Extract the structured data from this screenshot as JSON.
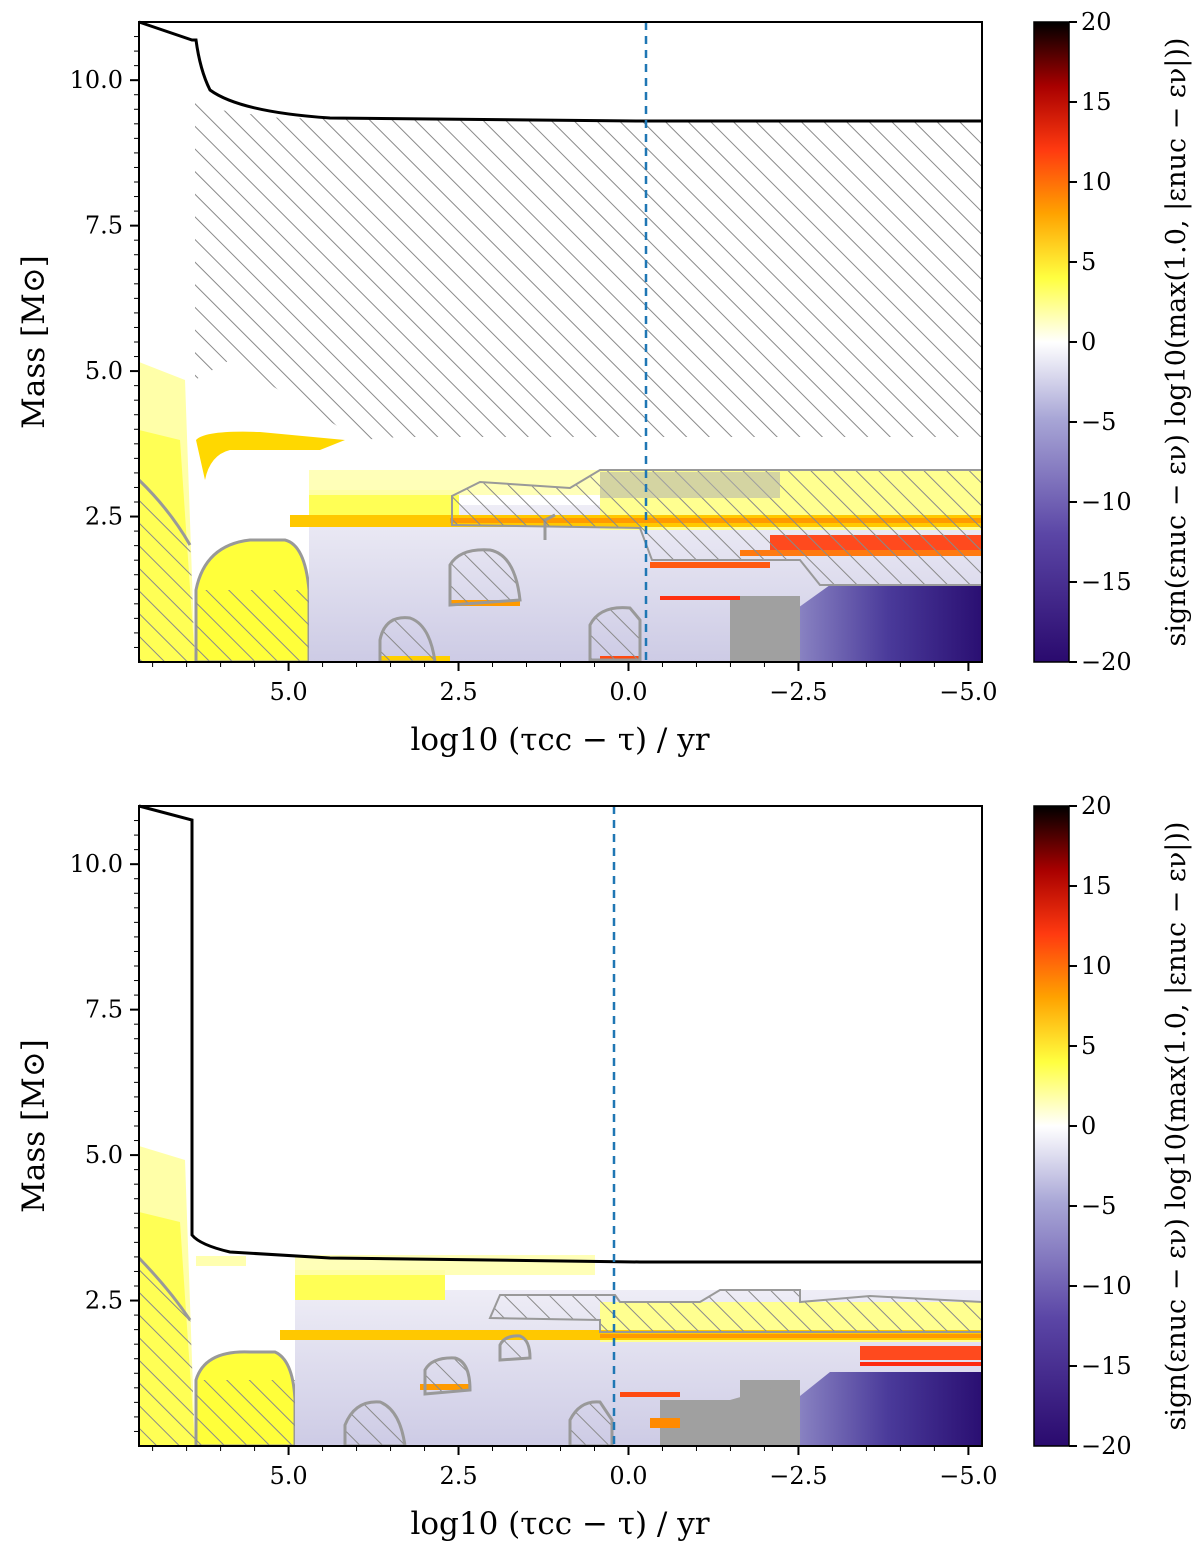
{
  "chart_data": [
    {
      "type": "heatmap",
      "panel": "top",
      "xlabel": "log10 (τcc − τ) / yr",
      "ylabel": "Mass [M⊙]",
      "x_reversed": true,
      "xlim": [
        7.2,
        -5.2
      ],
      "ylim": [
        0.0,
        11.0
      ],
      "xticks": [
        5.0,
        2.5,
        0.0,
        -2.5,
        -5.0
      ],
      "xtick_labels": [
        "5.0",
        "2.5",
        "0.0",
        "−2.5",
        "−5.0"
      ],
      "yticks": [
        2.5,
        5.0,
        7.5,
        10.0
      ],
      "ytick_labels": [
        "2.5",
        "5.0",
        "7.5",
        "10.0"
      ],
      "dashed_line_x": -0.35,
      "colorbar": {
        "label": "sign(εnuc − εν) log10(max(1.0, |εnuc − εν|))",
        "range": [
          -20,
          20
        ],
        "ticks": [
          -20,
          -15,
          -10,
          -5,
          0,
          5,
          10,
          15,
          20
        ],
        "tick_labels": [
          "−20",
          "−15",
          "−10",
          "−5",
          "0",
          "5",
          "10",
          "15",
          "20"
        ]
      },
      "total_mass_curve": [
        [
          7.2,
          11.0
        ],
        [
          6.3,
          10.7
        ],
        [
          6.1,
          10.2
        ],
        [
          5.5,
          9.8
        ],
        [
          4.0,
          9.45
        ],
        [
          2.0,
          9.32
        ],
        [
          0.0,
          9.3
        ],
        [
          -5.2,
          9.3
        ]
      ],
      "envelope_convection": {
        "x_from": 6.3,
        "x_to": -5.2,
        "mass_bottom": 3.9,
        "mass_top": 9.3
      },
      "annotations": []
    },
    {
      "type": "heatmap",
      "panel": "bottom",
      "xlabel": "log10 (τcc − τ) / yr",
      "ylabel": "Mass [M⊙]",
      "x_reversed": true,
      "xlim": [
        7.2,
        -5.2
      ],
      "ylim": [
        0.0,
        11.0
      ],
      "xticks": [
        5.0,
        2.5,
        0.0,
        -2.5,
        -5.0
      ],
      "xtick_labels": [
        "5.0",
        "2.5",
        "0.0",
        "−2.5",
        "−5.0"
      ],
      "yticks": [
        2.5,
        5.0,
        7.5,
        10.0
      ],
      "ytick_labels": [
        "2.5",
        "5.0",
        "7.5",
        "10.0"
      ],
      "dashed_line_x": 0.15,
      "colorbar": {
        "label": "sign(εnuc − εν) log10(max(1.0, |εnuc − εν|))",
        "range": [
          -20,
          20
        ],
        "ticks": [
          -20,
          -15,
          -10,
          -5,
          0,
          5,
          10,
          15,
          20
        ],
        "tick_labels": [
          "−20",
          "−15",
          "−10",
          "−5",
          "0",
          "5",
          "10",
          "15",
          "20"
        ]
      },
      "total_mass_curve": [
        [
          7.2,
          11.0
        ],
        [
          6.3,
          10.8
        ],
        [
          6.3,
          3.5
        ],
        [
          5.5,
          3.2
        ],
        [
          3.0,
          3.12
        ],
        [
          0.0,
          3.1
        ],
        [
          -5.2,
          3.1
        ]
      ],
      "annotations": []
    }
  ]
}
